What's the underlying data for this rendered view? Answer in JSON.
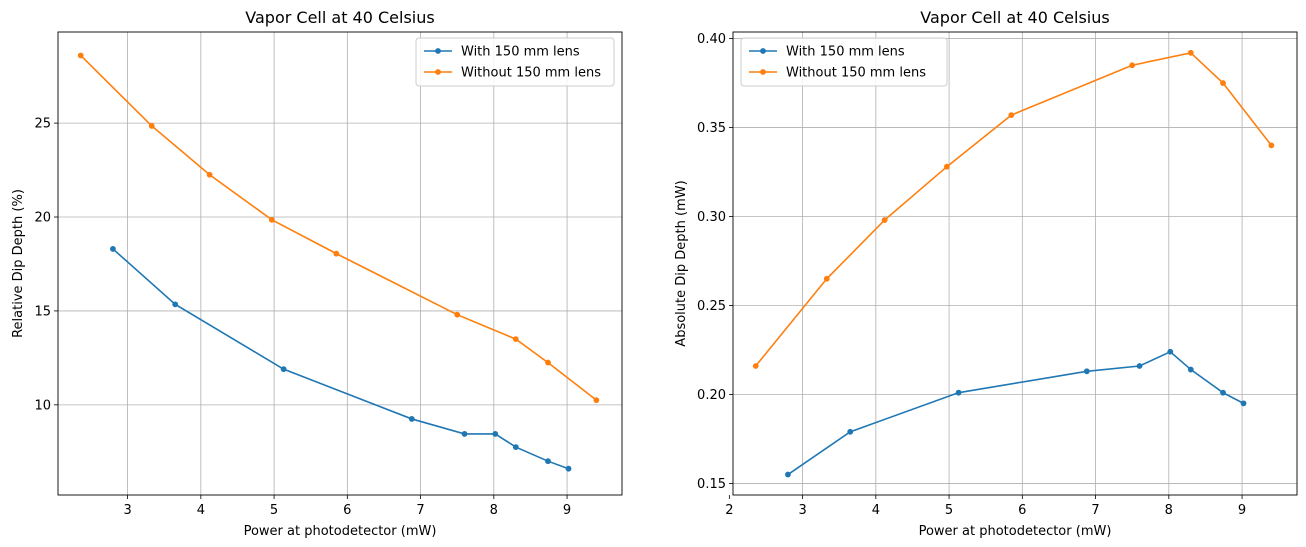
{
  "chart_data": [
    {
      "type": "line",
      "title": "Vapor Cell at 40 Celsius",
      "xlabel": "Power at photodetector (mW)",
      "ylabel": "Relative Dip Depth (%)",
      "xlim": [
        2.05,
        9.75
      ],
      "ylim": [
        5.2,
        29.85
      ],
      "xticks": [
        3,
        4,
        5,
        6,
        7,
        8,
        9
      ],
      "yticks": [
        10,
        15,
        20,
        25
      ],
      "grid": true,
      "legend": "top-right",
      "series": [
        {
          "name": "With 150 mm lens",
          "color": "#1f77b4",
          "x": [
            2.8,
            3.65,
            5.13,
            6.88,
            7.6,
            8.02,
            8.3,
            8.74,
            9.02
          ],
          "y": [
            18.3,
            15.35,
            11.9,
            9.25,
            8.45,
            8.45,
            7.75,
            7.0,
            6.6
          ]
        },
        {
          "name": "Without 150 mm lens",
          "color": "#ff7f0e",
          "x": [
            2.36,
            3.33,
            4.12,
            4.97,
            5.85,
            7.5,
            8.3,
            8.74,
            9.4
          ],
          "y": [
            28.6,
            24.85,
            22.25,
            19.85,
            18.05,
            14.8,
            13.5,
            12.25,
            10.25
          ]
        }
      ]
    },
    {
      "type": "line",
      "title": "Vapor Cell at 40 Celsius",
      "xlabel": "Power at photodetector (mW)",
      "ylabel": "Absolute Dip Depth (mW)",
      "xlim": [
        2.05,
        9.75
      ],
      "ylim": [
        0.1435,
        0.4037
      ],
      "xticks": [
        2,
        3,
        4,
        5,
        6,
        7,
        8,
        9
      ],
      "yticks": [
        0.15,
        0.2,
        0.25,
        0.3,
        0.35,
        0.4
      ],
      "ytick_labels": [
        "0.15",
        "0.20",
        "0.25",
        "0.30",
        "0.35",
        "0.40"
      ],
      "grid": true,
      "legend": "top-left",
      "series": [
        {
          "name": "With 150 mm lens",
          "color": "#1f77b4",
          "x": [
            2.8,
            3.65,
            5.13,
            6.88,
            7.6,
            8.02,
            8.3,
            8.74,
            9.02
          ],
          "y": [
            0.155,
            0.179,
            0.201,
            0.213,
            0.216,
            0.224,
            0.214,
            0.201,
            0.195
          ]
        },
        {
          "name": "Without 150 mm lens",
          "color": "#ff7f0e",
          "x": [
            2.36,
            3.33,
            4.12,
            4.97,
            5.85,
            7.5,
            8.3,
            8.74,
            9.4
          ],
          "y": [
            0.216,
            0.265,
            0.298,
            0.328,
            0.357,
            0.385,
            0.392,
            0.375,
            0.34
          ]
        }
      ]
    }
  ]
}
